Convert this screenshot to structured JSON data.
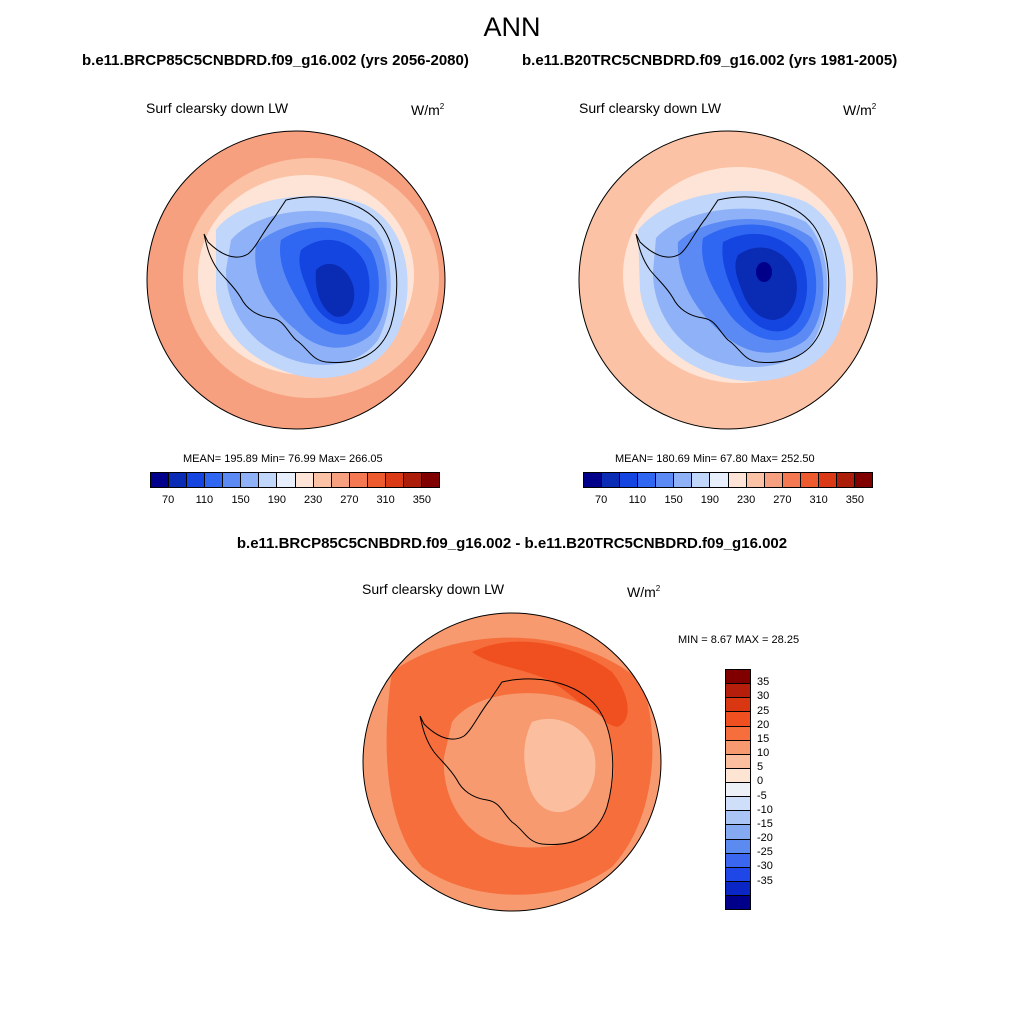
{
  "page": {
    "title": "ANN",
    "left_run": "b.e11.BRCP85C5CNBDRD.f09_g16.002 (yrs 2056-2080)",
    "right_run": "b.e11.B20TRC5CNBDRD.f09_g16.002 (yrs 1981-2005)",
    "diff_title": "b.e11.BRCP85C5CNBDRD.f09_g16.002 - b.e11.B20TRC5CNBDRD.f09_g16.002"
  },
  "panels": {
    "left": {
      "variable": "Surf clearsky down LW",
      "units": "W/m",
      "units_sup": "2",
      "stats": "MEAN= 195.89  Min=  76.99  Max= 266.05"
    },
    "right": {
      "variable": "Surf clearsky down LW",
      "units": "W/m",
      "units_sup": "2",
      "stats": "MEAN= 180.69  Min=  67.80  Max= 252.50"
    },
    "diff": {
      "variable": "Surf clearsky down LW",
      "units": "W/m",
      "units_sup": "2",
      "stats": "MIN =   8.67 MAX =  28.25"
    }
  },
  "colorbars": {
    "abs": {
      "colors": [
        "#00008b",
        "#0a2bb3",
        "#1445e0",
        "#2f66f2",
        "#5b8af5",
        "#8fb1f7",
        "#c0d6fa",
        "#e7effc",
        "#fde4d6",
        "#fbc2a6",
        "#f7a07f",
        "#f47952",
        "#ec5a2e",
        "#da3a16",
        "#ad1e0a",
        "#800000"
      ],
      "labels": [
        "70",
        "110",
        "150",
        "190",
        "230",
        "270",
        "310",
        "350"
      ]
    },
    "diff": {
      "colors": [
        "#800000",
        "#b51e0a",
        "#d93612",
        "#f05020",
        "#f56e3b",
        "#f79a6f",
        "#fbbfa0",
        "#fde4d3",
        "#eef0f7",
        "#cfdff9",
        "#a9c4f5",
        "#85aaf2",
        "#5b8af0",
        "#3a66f0",
        "#1f46e6",
        "#0a26c4",
        "#00008b"
      ],
      "labels": [
        "35",
        "30",
        "25",
        "20",
        "15",
        "10",
        "5",
        "0",
        "-5",
        "-10",
        "-15",
        "-20",
        "-25",
        "-30",
        "-35"
      ]
    }
  },
  "map_fills": {
    "left": [
      "#f7a07f",
      "#fbc2a6",
      "#fde4d6",
      "#c0d6fa",
      "#8fb1f7",
      "#5b8af5",
      "#2f66f2",
      "#1445e0",
      "#0a2bb3"
    ],
    "right": [
      "#fbc2a6",
      "#fde4d6",
      "#c0d6fa",
      "#8fb1f7",
      "#5b8af5",
      "#2f66f2",
      "#1445e0",
      "#0a2bb3",
      "#00008b"
    ],
    "diff": [
      "#f79a6f",
      "#f56e3b",
      "#f05020",
      "#f79a6f",
      "#fbbfa0"
    ]
  }
}
